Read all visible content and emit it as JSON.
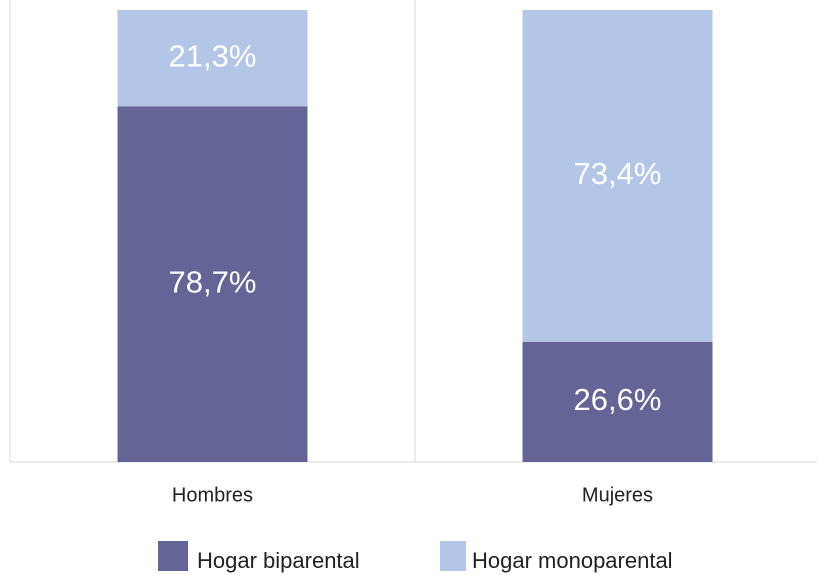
{
  "chart_data": {
    "type": "stacked_bar_100",
    "categories": [
      "Hombres",
      "Mujeres"
    ],
    "series": [
      {
        "name": "Hogar biparental",
        "color": "#656496",
        "values": [
          78.7,
          26.6
        ],
        "value_labels": [
          "78,7%",
          "26,6%"
        ]
      },
      {
        "name": "Hogar monoparental",
        "color": "#b4c6e7",
        "values": [
          21.3,
          73.4
        ],
        "value_labels": [
          "21,3%",
          "73,4%"
        ]
      }
    ],
    "ylim": [
      0,
      100
    ],
    "legend": "bottom"
  }
}
